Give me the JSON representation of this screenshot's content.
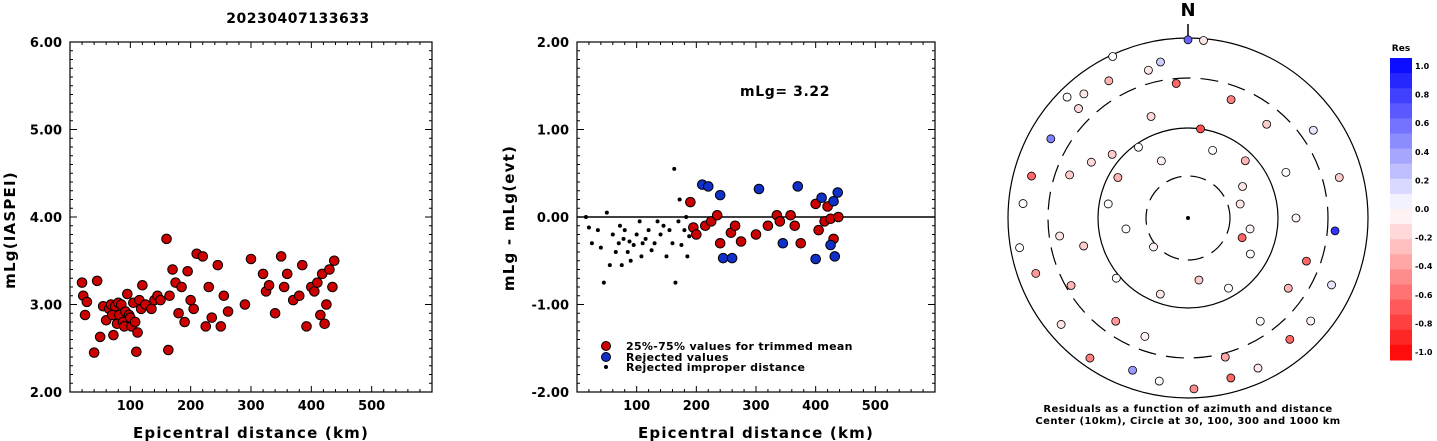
{
  "title": "20230407133633",
  "colors": {
    "trimmed": "#cc0000",
    "rejected": "#1030c8",
    "improper": "#000000"
  },
  "chart_data": [
    {
      "type": "scatter",
      "xlabel": "Epicentral distance (km)",
      "ylabel": "mLg(IASPEI)",
      "xlim": [
        0,
        600
      ],
      "ylim": [
        2.0,
        6.0
      ],
      "xticks": [
        "100",
        "200",
        "300",
        "400",
        "500"
      ],
      "yticks": [
        "2.00",
        "3.00",
        "4.00",
        "5.00",
        "6.00"
      ],
      "series": [
        {
          "points": [
            [
              20,
              3.25
            ],
            [
              22,
              3.1
            ],
            [
              25,
              2.88
            ],
            [
              28,
              3.03
            ],
            [
              40,
              2.45
            ],
            [
              45,
              3.27
            ],
            [
              50,
              2.63
            ],
            [
              55,
              2.98
            ],
            [
              60,
              2.82
            ],
            [
              65,
              2.95
            ],
            [
              68,
              3.0
            ],
            [
              70,
              2.88
            ],
            [
              72,
              2.65
            ],
            [
              75,
              2.98
            ],
            [
              78,
              2.78
            ],
            [
              80,
              3.02
            ],
            [
              82,
              2.88
            ],
            [
              85,
              3.0
            ],
            [
              88,
              2.8
            ],
            [
              90,
              2.75
            ],
            [
              92,
              2.92
            ],
            [
              95,
              3.12
            ],
            [
              98,
              2.88
            ],
            [
              100,
              2.85
            ],
            [
              102,
              2.75
            ],
            [
              105,
              3.02
            ],
            [
              108,
              2.8
            ],
            [
              110,
              2.46
            ],
            [
              112,
              2.68
            ],
            [
              115,
              3.05
            ],
            [
              118,
              2.95
            ],
            [
              120,
              3.22
            ],
            [
              125,
              3.0
            ],
            [
              135,
              2.95
            ],
            [
              140,
              3.05
            ],
            [
              145,
              3.1
            ],
            [
              150,
              3.05
            ],
            [
              160,
              3.75
            ],
            [
              163,
              2.48
            ],
            [
              165,
              3.1
            ],
            [
              170,
              3.4
            ],
            [
              175,
              3.25
            ],
            [
              180,
              2.9
            ],
            [
              185,
              3.2
            ],
            [
              190,
              2.8
            ],
            [
              195,
              3.38
            ],
            [
              200,
              3.05
            ],
            [
              205,
              2.95
            ],
            [
              210,
              3.58
            ],
            [
              220,
              3.55
            ],
            [
              225,
              2.75
            ],
            [
              230,
              3.2
            ],
            [
              235,
              2.85
            ],
            [
              245,
              3.45
            ],
            [
              250,
              2.75
            ],
            [
              255,
              3.1
            ],
            [
              262,
              2.92
            ],
            [
              290,
              3.0
            ],
            [
              300,
              3.52
            ],
            [
              320,
              3.35
            ],
            [
              325,
              3.15
            ],
            [
              330,
              3.22
            ],
            [
              340,
              2.9
            ],
            [
              350,
              3.55
            ],
            [
              355,
              3.2
            ],
            [
              360,
              3.35
            ],
            [
              370,
              3.05
            ],
            [
              380,
              3.1
            ],
            [
              385,
              3.45
            ],
            [
              392,
              2.75
            ],
            [
              400,
              3.2
            ],
            [
              405,
              3.15
            ],
            [
              410,
              3.25
            ],
            [
              415,
              2.88
            ],
            [
              418,
              3.35
            ],
            [
              422,
              2.78
            ],
            [
              425,
              3.0
            ],
            [
              430,
              3.4
            ],
            [
              435,
              3.2
            ],
            [
              438,
              3.5
            ]
          ]
        }
      ]
    },
    {
      "type": "scatter",
      "xlabel": "Epicentral distance (km)",
      "ylabel": "mLg - mLg(evt)",
      "xlim": [
        0,
        600
      ],
      "ylim": [
        -2.0,
        2.0
      ],
      "xticks": [
        "100",
        "200",
        "300",
        "400",
        "500"
      ],
      "yticks": [
        "-2.00",
        "-1.00",
        "0.00",
        "1.00",
        "2.00"
      ],
      "annotation": "mLg= 3.22",
      "legend": [
        "25%-75% values for trimmed mean",
        "Rejected values",
        "Rejected improper distance"
      ],
      "series": [
        {
          "name": "25%-75% values for trimmed mean",
          "points": [
            [
              190,
              0.17
            ],
            [
              195,
              -0.12
            ],
            [
              200,
              -0.2
            ],
            [
              215,
              -0.1
            ],
            [
              225,
              -0.05
            ],
            [
              235,
              0.02
            ],
            [
              240,
              -0.3
            ],
            [
              258,
              -0.18
            ],
            [
              265,
              -0.1
            ],
            [
              275,
              -0.28
            ],
            [
              300,
              -0.2
            ],
            [
              320,
              -0.1
            ],
            [
              335,
              0.02
            ],
            [
              340,
              -0.05
            ],
            [
              358,
              0.02
            ],
            [
              365,
              -0.1
            ],
            [
              375,
              -0.3
            ],
            [
              400,
              0.15
            ],
            [
              405,
              -0.15
            ],
            [
              415,
              -0.05
            ],
            [
              420,
              0.12
            ],
            [
              425,
              -0.02
            ],
            [
              430,
              -0.25
            ],
            [
              438,
              0.0
            ]
          ]
        },
        {
          "name": "Rejected values",
          "points": [
            [
              210,
              0.37
            ],
            [
              220,
              0.35
            ],
            [
              240,
              0.25
            ],
            [
              245,
              -0.47
            ],
            [
              260,
              -0.47
            ],
            [
              305,
              0.32
            ],
            [
              345,
              -0.3
            ],
            [
              370,
              0.35
            ],
            [
              400,
              -0.48
            ],
            [
              410,
              0.22
            ],
            [
              425,
              -0.32
            ],
            [
              430,
              0.18
            ],
            [
              432,
              -0.45
            ],
            [
              437,
              0.28
            ]
          ]
        },
        {
          "name": "Rejected improper distance",
          "points": [
            [
              15,
              0.0
            ],
            [
              20,
              -0.12
            ],
            [
              25,
              -0.3
            ],
            [
              35,
              -0.15
            ],
            [
              40,
              -0.35
            ],
            [
              45,
              -0.75
            ],
            [
              50,
              0.05
            ],
            [
              55,
              -0.55
            ],
            [
              60,
              -0.2
            ],
            [
              65,
              -0.4
            ],
            [
              70,
              -0.3
            ],
            [
              72,
              -0.1
            ],
            [
              75,
              -0.55
            ],
            [
              78,
              -0.25
            ],
            [
              80,
              -0.15
            ],
            [
              85,
              -0.4
            ],
            [
              88,
              -0.28
            ],
            [
              90,
              -0.5
            ],
            [
              95,
              -0.32
            ],
            [
              100,
              -0.2
            ],
            [
              105,
              -0.05
            ],
            [
              108,
              -0.45
            ],
            [
              110,
              -0.3
            ],
            [
              115,
              -0.25
            ],
            [
              120,
              -0.15
            ],
            [
              125,
              -0.38
            ],
            [
              130,
              -0.3
            ],
            [
              135,
              -0.05
            ],
            [
              140,
              -0.2
            ],
            [
              145,
              -0.1
            ],
            [
              150,
              -0.45
            ],
            [
              155,
              -0.15
            ],
            [
              160,
              -0.3
            ],
            [
              163,
              0.55
            ],
            [
              165,
              -0.75
            ],
            [
              170,
              -0.05
            ],
            [
              172,
              0.2
            ],
            [
              175,
              -0.32
            ],
            [
              180,
              -0.15
            ],
            [
              183,
              0.0
            ],
            [
              185,
              -0.45
            ],
            [
              188,
              -0.22
            ]
          ]
        }
      ]
    },
    {
      "type": "scatter",
      "title": "N",
      "caption": "Residuals as a function of azimuth and distance",
      "caption2": "Center (10km), Circle at 30, 100, 300 and 1000 km",
      "colorbar_label": "Res",
      "colorbar_ticks": [
        "1.0",
        "0.8",
        "0.6",
        "0.4",
        "0.2",
        "0.0",
        "-0.2",
        "-0.4",
        "-0.6",
        "-0.8",
        "-1.0"
      ],
      "colorbar_range": [
        -1.0,
        1.0
      ],
      "points_az_r_res": [
        [
          0,
          0.99,
          0.6
        ],
        [
          5,
          0.99,
          -0.1
        ],
        [
          -25,
          0.99,
          0.0
        ],
        [
          -10,
          0.88,
          0.2
        ],
        [
          -40,
          0.9,
          -0.1
        ],
        [
          -45,
          0.95,
          0.0
        ],
        [
          55,
          0.85,
          0.1
        ],
        [
          75,
          0.87,
          -0.2
        ],
        [
          95,
          0.82,
          0.8
        ],
        [
          115,
          0.88,
          0.1
        ],
        [
          130,
          0.89,
          -0.05
        ],
        [
          140,
          0.88,
          -0.6
        ],
        [
          155,
          0.92,
          -0.1
        ],
        [
          165,
          0.92,
          -0.6
        ],
        [
          178,
          0.95,
          -0.45
        ],
        [
          190,
          0.92,
          0.0
        ],
        [
          200,
          0.9,
          0.4
        ],
        [
          215,
          0.95,
          -0.5
        ],
        [
          230,
          0.92,
          -0.1
        ],
        [
          250,
          0.9,
          -0.4
        ],
        [
          260,
          0.95,
          0.0
        ],
        [
          275,
          0.92,
          0.0
        ],
        [
          285,
          0.9,
          -0.6
        ],
        [
          300,
          0.88,
          0.5
        ],
        [
          315,
          0.86,
          -0.15
        ],
        [
          330,
          0.88,
          -0.3
        ],
        [
          345,
          0.85,
          -0.1
        ],
        [
          355,
          0.75,
          -0.6
        ],
        [
          20,
          0.7,
          -0.5
        ],
        [
          40,
          0.68,
          -0.2
        ],
        [
          65,
          0.6,
          0.0
        ],
        [
          90,
          0.6,
          -0.05
        ],
        [
          110,
          0.7,
          -0.6
        ],
        [
          125,
          0.68,
          -0.3
        ],
        [
          145,
          0.7,
          0.0
        ],
        [
          165,
          0.8,
          -0.35
        ],
        [
          200,
          0.7,
          -0.05
        ],
        [
          215,
          0.7,
          -0.4
        ],
        [
          240,
          0.75,
          -0.3
        ],
        [
          262,
          0.72,
          -0.1
        ],
        [
          290,
          0.7,
          -0.2
        ],
        [
          300,
          0.62,
          -0.15
        ],
        [
          310,
          0.55,
          -0.2
        ],
        [
          325,
          0.48,
          0.0
        ],
        [
          340,
          0.6,
          -0.15
        ],
        [
          8,
          0.5,
          -0.7
        ],
        [
          20,
          0.4,
          0.0
        ],
        [
          45,
          0.45,
          -0.3
        ],
        [
          75,
          0.3,
          -0.1
        ],
        [
          100,
          0.35,
          -0.05
        ],
        [
          120,
          0.4,
          0.0
        ],
        [
          150,
          0.45,
          0.0
        ],
        [
          170,
          0.35,
          -0.2
        ],
        [
          200,
          0.45,
          -0.1
        ],
        [
          230,
          0.52,
          0.0
        ],
        [
          255,
          0.6,
          -0.2
        ],
        [
          280,
          0.45,
          0.0
        ],
        [
          300,
          0.45,
          -0.3
        ],
        [
          335,
          0.35,
          -0.05
        ],
        [
          260,
          0.35,
          0.0
        ],
        [
          230,
          0.25,
          -0.05
        ],
        [
          60,
          0.35,
          -0.1
        ],
        [
          110,
          0.32,
          -0.6
        ]
      ]
    }
  ]
}
